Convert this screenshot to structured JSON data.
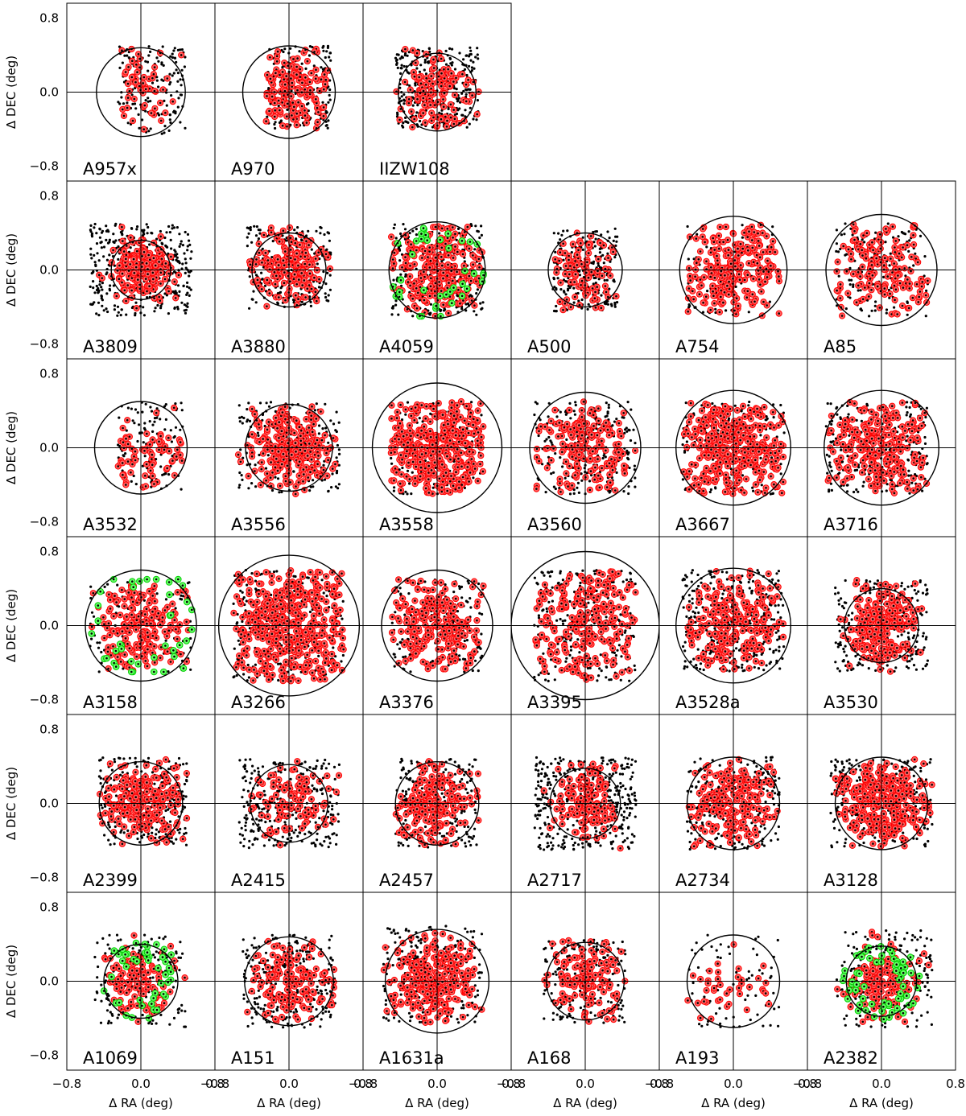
{
  "figure": {
    "xlabel": "Δ RA (deg)",
    "ylabel": "Δ DEC (deg)",
    "tick_labels": [
      "−0.8",
      "0.0",
      "0.8"
    ],
    "colors": {
      "member": "#ff0000",
      "substructure": "#00cc00",
      "point": "#000000",
      "frame": "#000000"
    }
  },
  "chart_data": {
    "type": "scatter",
    "description_of_axes": "Each panel plots galaxy positions relative to cluster centre",
    "xlim": [
      -0.8,
      0.8
    ],
    "ylim": [
      -0.8,
      0.8
    ],
    "xticks": [
      -0.8,
      0.0,
      0.8
    ],
    "yticks": [
      -0.8,
      0.0,
      0.8
    ],
    "grid": false,
    "crosshair_at_origin": true,
    "rows": [
      [
        {
          "name": "A957x",
          "circle_radius": 0.48,
          "extent": [
            -0.25,
            0.48,
            -0.45,
            0.5
          ],
          "n_black": 150,
          "n_red": 55,
          "n_green": 0
        },
        {
          "name": "A970",
          "circle_radius": 0.5,
          "extent": [
            -0.25,
            0.45,
            -0.4,
            0.5
          ],
          "n_black": 170,
          "n_red": 150,
          "n_green": 0
        },
        {
          "name": "IIZW108",
          "circle_radius": 0.42,
          "extent": [
            -0.45,
            0.45,
            -0.38,
            0.48
          ],
          "n_black": 320,
          "n_red": 120,
          "n_green": 0
        }
      ],
      [
        {
          "name": "A3809",
          "circle_radius": 0.32,
          "extent": [
            -0.55,
            0.55,
            -0.5,
            0.5
          ],
          "n_black": 360,
          "n_red": 170,
          "n_green": 0
        },
        {
          "name": "A3880",
          "circle_radius": 0.4,
          "extent": [
            -0.45,
            0.45,
            -0.42,
            0.48
          ],
          "n_black": 240,
          "n_red": 170,
          "n_green": 0
        },
        {
          "name": "A4059",
          "circle_radius": 0.52,
          "extent": [
            -0.5,
            0.5,
            -0.5,
            0.5
          ],
          "n_black": 260,
          "n_red": 230,
          "n_green": 40
        },
        {
          "name": "A500",
          "circle_radius": 0.4,
          "extent": [
            -0.35,
            0.35,
            -0.45,
            0.45
          ],
          "n_black": 220,
          "n_red": 90,
          "n_green": 0
        },
        {
          "name": "A754",
          "circle_radius": 0.58,
          "extent": [
            -0.5,
            0.5,
            -0.5,
            0.5
          ],
          "n_black": 60,
          "n_red": 240,
          "n_green": 0
        },
        {
          "name": "A85",
          "circle_radius": 0.6,
          "extent": [
            -0.5,
            0.5,
            -0.5,
            0.5
          ],
          "n_black": 150,
          "n_red": 150,
          "n_green": 0
        }
      ],
      [
        {
          "name": "A3532",
          "circle_radius": 0.5,
          "extent": [
            -0.25,
            0.45,
            -0.45,
            0.5
          ],
          "n_black": 110,
          "n_red": 70,
          "n_green": 0
        },
        {
          "name": "A3556",
          "circle_radius": 0.47,
          "extent": [
            -0.55,
            0.55,
            -0.5,
            0.5
          ],
          "n_black": 210,
          "n_red": 230,
          "n_green": 0
        },
        {
          "name": "A3558",
          "circle_radius": 0.7,
          "extent": [
            -0.5,
            0.5,
            -0.5,
            0.5
          ],
          "n_black": 120,
          "n_red": 360,
          "n_green": 0
        },
        {
          "name": "A3560",
          "circle_radius": 0.6,
          "extent": [
            -0.55,
            0.55,
            -0.5,
            0.5
          ],
          "n_black": 230,
          "n_red": 180,
          "n_green": 0
        },
        {
          "name": "A3667",
          "circle_radius": 0.62,
          "extent": [
            -0.55,
            0.55,
            -0.5,
            0.5
          ],
          "n_black": 170,
          "n_red": 330,
          "n_green": 0
        },
        {
          "name": "A3716",
          "circle_radius": 0.62,
          "extent": [
            -0.6,
            0.5,
            -0.5,
            0.5
          ],
          "n_black": 250,
          "n_red": 230,
          "n_green": 0
        }
      ],
      [
        {
          "name": "A3158",
          "circle_radius": 0.6,
          "extent": [
            -0.55,
            0.55,
            -0.5,
            0.5
          ],
          "n_black": 100,
          "n_red": 180,
          "n_green": 40
        },
        {
          "name": "A3266",
          "circle_radius": 0.76,
          "extent": [
            -0.6,
            0.6,
            -0.6,
            0.6
          ],
          "n_black": 240,
          "n_red": 420,
          "n_green": 0
        },
        {
          "name": "A3376",
          "circle_radius": 0.6,
          "extent": [
            -0.5,
            0.5,
            -0.5,
            0.5
          ],
          "n_black": 170,
          "n_red": 220,
          "n_green": 0
        },
        {
          "name": "A3395",
          "circle_radius": 0.8,
          "extent": [
            -0.55,
            0.55,
            -0.6,
            0.6
          ],
          "n_black": 260,
          "n_red": 230,
          "n_green": 0
        },
        {
          "name": "A3528a",
          "circle_radius": 0.62,
          "extent": [
            -0.55,
            0.55,
            -0.5,
            0.6
          ],
          "n_black": 320,
          "n_red": 220,
          "n_green": 0
        },
        {
          "name": "A3530",
          "circle_radius": 0.4,
          "extent": [
            -0.5,
            0.5,
            -0.5,
            0.5
          ],
          "n_black": 280,
          "n_red": 210,
          "n_green": 0
        }
      ],
      [
        {
          "name": "A2399",
          "circle_radius": 0.45,
          "extent": [
            -0.45,
            0.5,
            -0.45,
            0.5
          ],
          "n_black": 270,
          "n_red": 200,
          "n_green": 0
        },
        {
          "name": "A2415",
          "circle_radius": 0.42,
          "extent": [
            -0.55,
            0.55,
            -0.48,
            0.48
          ],
          "n_black": 290,
          "n_red": 100,
          "n_green": 0
        },
        {
          "name": "A2457",
          "circle_radius": 0.45,
          "extent": [
            -0.45,
            0.45,
            -0.48,
            0.48
          ],
          "n_black": 200,
          "n_red": 200,
          "n_green": 0
        },
        {
          "name": "A2717",
          "circle_radius": 0.38,
          "extent": [
            -0.55,
            0.55,
            -0.5,
            0.5
          ],
          "n_black": 380,
          "n_red": 130,
          "n_green": 0
        },
        {
          "name": "A2734",
          "circle_radius": 0.5,
          "extent": [
            -0.5,
            0.5,
            -0.5,
            0.5
          ],
          "n_black": 220,
          "n_red": 200,
          "n_green": 0
        },
        {
          "name": "A3128",
          "circle_radius": 0.5,
          "extent": [
            -0.55,
            0.55,
            -0.48,
            0.48
          ],
          "n_black": 240,
          "n_red": 300,
          "n_green": 0
        }
      ],
      [
        {
          "name": "A1069",
          "circle_radius": 0.4,
          "extent": [
            -0.5,
            0.5,
            -0.5,
            0.5
          ],
          "n_black": 160,
          "n_red": 110,
          "n_green": 45
        },
        {
          "name": "A151",
          "circle_radius": 0.48,
          "extent": [
            -0.5,
            0.5,
            -0.5,
            0.5
          ],
          "n_black": 270,
          "n_red": 150,
          "n_green": 0
        },
        {
          "name": "A1631a",
          "circle_radius": 0.56,
          "extent": [
            -0.6,
            0.5,
            -0.45,
            0.6
          ],
          "n_black": 200,
          "n_red": 260,
          "n_green": 0
        },
        {
          "name": "A168",
          "circle_radius": 0.42,
          "extent": [
            -0.45,
            0.45,
            -0.45,
            0.45
          ],
          "n_black": 190,
          "n_red": 130,
          "n_green": 0
        },
        {
          "name": "A193",
          "circle_radius": 0.5,
          "extent": [
            -0.5,
            0.5,
            -0.5,
            0.5
          ],
          "n_black": 70,
          "n_red": 40,
          "n_green": 0
        },
        {
          "name": "A2382",
          "circle_radius": 0.38,
          "extent": [
            -0.5,
            0.55,
            -0.5,
            0.55
          ],
          "n_black": 190,
          "n_red": 150,
          "n_green": 65
        }
      ]
    ]
  }
}
